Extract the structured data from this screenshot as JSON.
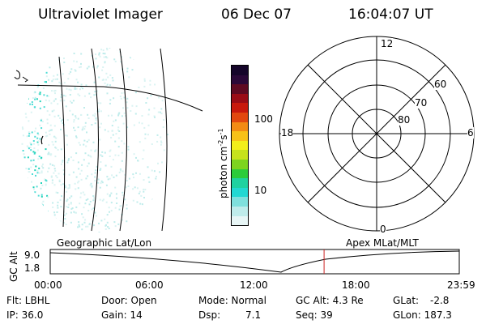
{
  "header": {
    "instrument": "Ultraviolet Imager",
    "date": "06 Dec 07",
    "time": "16:04:07 UT"
  },
  "left_panel": {
    "label": "Geographic Lat/Lon"
  },
  "colorbar": {
    "label_html": "photon cm",
    "ticks": [
      "100",
      "10"
    ],
    "colors": [
      "#e8f6f6",
      "#bfeceb",
      "#7fe0dd",
      "#22d8d2",
      "#1fd2a0",
      "#2ccc3b",
      "#7dd41f",
      "#c6e21c",
      "#f3ee1a",
      "#f8c118",
      "#f38b14",
      "#e2480f",
      "#c8190d",
      "#9a0c16",
      "#5e0a22",
      "#2a0838",
      "#15052a"
    ]
  },
  "polar": {
    "label": "Apex MLat/MLT",
    "top": "12",
    "right": "6",
    "bottom": "0",
    "left": "18",
    "rings": [
      "60",
      "70",
      "80"
    ]
  },
  "altitude_plot": {
    "ylabel": "GC Alt",
    "yticks": [
      "9.0",
      "1.8"
    ],
    "xticks": [
      "00:00",
      "06:00",
      "12:00",
      "18:00",
      "23:59"
    ],
    "marker_time_hours": 16.07
  },
  "footer": {
    "flt_label": "Flt: LBHL",
    "ip_label": "IP: 36.0",
    "door_label": "Door: Open",
    "gain_label": "Gain: 14",
    "mode_label": "Mode: Normal",
    "dsp_label": "Dsp:",
    "dsp_value": "7.1",
    "gcalt_label": "GC Alt: 4.3 Re",
    "seq_label": "Seq: 39",
    "glat_label": "GLat:",
    "glat_value": "-2.8",
    "glon_label": "GLon: 187.3"
  }
}
